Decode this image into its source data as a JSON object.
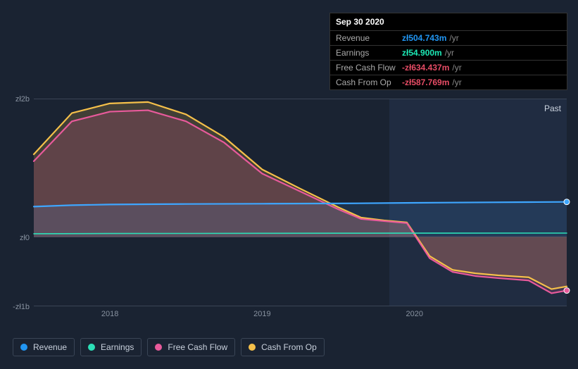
{
  "tooltip": {
    "date": "Sep 30 2020",
    "rows": [
      {
        "label": "Revenue",
        "value": "zł504.743m",
        "color": "#2196f3",
        "unit": "/yr"
      },
      {
        "label": "Earnings",
        "value": "zł54.900m",
        "color": "#1de9b6",
        "unit": "/yr"
      },
      {
        "label": "Free Cash Flow",
        "value": "-zł634.437m",
        "color": "#e64c65",
        "unit": "/yr"
      },
      {
        "label": "Cash From Op",
        "value": "-zł587.769m",
        "color": "#e64c65",
        "unit": "/yr"
      }
    ]
  },
  "chart": {
    "type": "area-line",
    "past_label": "Past",
    "domain_x": [
      2017.5,
      2021.0
    ],
    "domain_y": [
      -1000,
      2000
    ],
    "xticks": [
      {
        "value": 2018,
        "label": "2018"
      },
      {
        "value": 2019,
        "label": "2019"
      },
      {
        "value": 2020,
        "label": "2020"
      }
    ],
    "yticks": [
      {
        "value": 2000,
        "label": "zł2b"
      },
      {
        "value": 0,
        "label": "zł0"
      },
      {
        "value": -1000,
        "label": "-zł1b"
      }
    ],
    "future_boundary_x": 2019.833,
    "series": [
      {
        "name": "Cash From Op",
        "color": "#f5c04a",
        "fill": "rgba(245,192,74,0.18)",
        "line_width": 2.2,
        "points": [
          {
            "x": 2017.5,
            "y": 1200
          },
          {
            "x": 2017.75,
            "y": 1800
          },
          {
            "x": 2018.0,
            "y": 1940
          },
          {
            "x": 2018.25,
            "y": 1960
          },
          {
            "x": 2018.5,
            "y": 1780
          },
          {
            "x": 2018.75,
            "y": 1450
          },
          {
            "x": 2019.0,
            "y": 980
          },
          {
            "x": 2019.25,
            "y": 700
          },
          {
            "x": 2019.5,
            "y": 430
          },
          {
            "x": 2019.65,
            "y": 280
          },
          {
            "x": 2019.8,
            "y": 240
          },
          {
            "x": 2019.95,
            "y": 210
          },
          {
            "x": 2020.1,
            "y": -280
          },
          {
            "x": 2020.25,
            "y": -480
          },
          {
            "x": 2020.4,
            "y": -530
          },
          {
            "x": 2020.55,
            "y": -560
          },
          {
            "x": 2020.75,
            "y": -588
          },
          {
            "x": 2020.9,
            "y": -760
          },
          {
            "x": 2021.0,
            "y": -720
          }
        ]
      },
      {
        "name": "Free Cash Flow",
        "color": "#e85a9b",
        "fill": "rgba(232,90,155,0.18)",
        "line_width": 2.2,
        "points": [
          {
            "x": 2017.5,
            "y": 1100
          },
          {
            "x": 2017.75,
            "y": 1680
          },
          {
            "x": 2018.0,
            "y": 1820
          },
          {
            "x": 2018.25,
            "y": 1840
          },
          {
            "x": 2018.5,
            "y": 1680
          },
          {
            "x": 2018.75,
            "y": 1370
          },
          {
            "x": 2019.0,
            "y": 920
          },
          {
            "x": 2019.25,
            "y": 660
          },
          {
            "x": 2019.5,
            "y": 400
          },
          {
            "x": 2019.65,
            "y": 260
          },
          {
            "x": 2019.8,
            "y": 230
          },
          {
            "x": 2019.95,
            "y": 200
          },
          {
            "x": 2020.1,
            "y": -310
          },
          {
            "x": 2020.25,
            "y": -510
          },
          {
            "x": 2020.4,
            "y": -570
          },
          {
            "x": 2020.55,
            "y": -600
          },
          {
            "x": 2020.75,
            "y": -634
          },
          {
            "x": 2020.9,
            "y": -820
          },
          {
            "x": 2021.0,
            "y": -780
          }
        ]
      },
      {
        "name": "Revenue",
        "color": "#3ea6ff",
        "fill": "rgba(62,166,255,0.12)",
        "line_width": 2.2,
        "points": [
          {
            "x": 2017.5,
            "y": 440
          },
          {
            "x": 2017.75,
            "y": 460
          },
          {
            "x": 2018.0,
            "y": 470
          },
          {
            "x": 2018.25,
            "y": 475
          },
          {
            "x": 2018.5,
            "y": 478
          },
          {
            "x": 2019.0,
            "y": 482
          },
          {
            "x": 2019.5,
            "y": 486
          },
          {
            "x": 2020.0,
            "y": 495
          },
          {
            "x": 2020.5,
            "y": 502
          },
          {
            "x": 2020.75,
            "y": 505
          },
          {
            "x": 2021.0,
            "y": 508
          }
        ]
      },
      {
        "name": "Earnings",
        "color": "#2ce0b8",
        "fill": "none",
        "line_width": 1.6,
        "points": [
          {
            "x": 2017.5,
            "y": 45
          },
          {
            "x": 2018.0,
            "y": 48
          },
          {
            "x": 2018.5,
            "y": 50
          },
          {
            "x": 2019.0,
            "y": 52
          },
          {
            "x": 2019.5,
            "y": 53
          },
          {
            "x": 2020.0,
            "y": 54
          },
          {
            "x": 2020.75,
            "y": 55
          },
          {
            "x": 2021.0,
            "y": 55
          }
        ]
      }
    ],
    "markers": [
      {
        "series": "Revenue",
        "x": 2021.0,
        "y": 508,
        "color": "#3ea6ff"
      },
      {
        "series": "Free Cash Flow",
        "x": 2021.0,
        "y": -780,
        "color": "#e85a9b"
      }
    ],
    "background_color": "#1a2332",
    "grid_color": "#3a4556"
  },
  "legend": [
    {
      "label": "Revenue",
      "color": "#2196f3"
    },
    {
      "label": "Earnings",
      "color": "#2ce0b8"
    },
    {
      "label": "Free Cash Flow",
      "color": "#e85a9b"
    },
    {
      "label": "Cash From Op",
      "color": "#f5c04a"
    }
  ]
}
